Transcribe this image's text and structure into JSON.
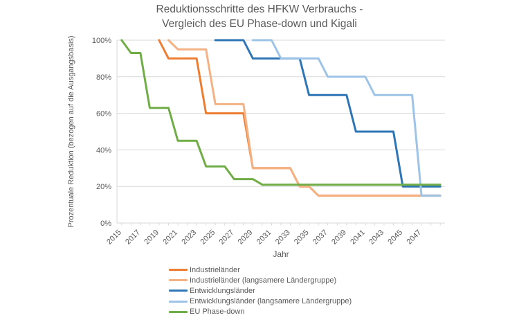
{
  "title": {
    "line1": "Reduktionsschritte des HFKW Verbrauchs -",
    "line2": "Vergleich des EU Phase-down und Kigali"
  },
  "axes": {
    "y": {
      "title": "Prozentuale Reduktion (bezogen auf die Ausgangsbasis)",
      "ticks": [
        "0%",
        "20%",
        "40%",
        "60%",
        "80%",
        "100%"
      ],
      "min": 0,
      "max": 100
    },
    "x": {
      "title": "Jahr",
      "tick_years": [
        2015,
        2017,
        2019,
        2021,
        2023,
        2025,
        2027,
        2029,
        2031,
        2033,
        2035,
        2037,
        2039,
        2041,
        2043,
        2045,
        2047
      ],
      "first_year": 2015,
      "last_year": 2049
    }
  },
  "chart_data": {
    "type": "line",
    "subtype": "step-yearly",
    "title": "Reduktionsschritte des HFKW Verbrauchs - Vergleich des EU Phase-down und Kigali",
    "xlabel": "Jahr",
    "ylabel": "Prozentuale Reduktion (bezogen auf die Ausgangsbasis)",
    "x_range": [
      2015,
      2049
    ],
    "ylim": [
      0,
      100
    ],
    "y_tick_step": 20,
    "grid": "horizontal",
    "legend_position": "bottom-left",
    "series": [
      {
        "name": "Industrieländer",
        "color": "#ED7D31",
        "points": [
          [
            2019,
            100
          ],
          [
            2020,
            90
          ],
          [
            2023,
            90
          ],
          [
            2024,
            60
          ],
          [
            2028,
            60
          ],
          [
            2029,
            30
          ],
          [
            2033,
            30
          ],
          [
            2034,
            20
          ],
          [
            2035,
            20
          ],
          [
            2036,
            15
          ],
          [
            2049,
            15
          ]
        ]
      },
      {
        "name": "Industrieländer (langsamere Ländergruppe)",
        "color": "#F4B183",
        "points": [
          [
            2020,
            100
          ],
          [
            2021,
            95
          ],
          [
            2024,
            95
          ],
          [
            2025,
            65
          ],
          [
            2028,
            65
          ],
          [
            2029,
            30
          ],
          [
            2033,
            30
          ],
          [
            2034,
            20
          ],
          [
            2035,
            20
          ],
          [
            2036,
            15
          ],
          [
            2049,
            15
          ]
        ]
      },
      {
        "name": "Entwicklungsländer",
        "color": "#2E75B6",
        "points": [
          [
            2025,
            100
          ],
          [
            2028,
            100
          ],
          [
            2029,
            90
          ],
          [
            2034,
            90
          ],
          [
            2035,
            70
          ],
          [
            2039,
            70
          ],
          [
            2040,
            50
          ],
          [
            2044,
            50
          ],
          [
            2045,
            20
          ],
          [
            2049,
            20
          ]
        ]
      },
      {
        "name": "Entwicklungsländer (langsamere Ländergruppe)",
        "color": "#9DC3E6",
        "points": [
          [
            2029,
            100
          ],
          [
            2031,
            100
          ],
          [
            2032,
            90
          ],
          [
            2036,
            90
          ],
          [
            2037,
            80
          ],
          [
            2041,
            80
          ],
          [
            2042,
            70
          ],
          [
            2046,
            70
          ],
          [
            2047,
            15
          ],
          [
            2049,
            15
          ]
        ]
      },
      {
        "name": "EU Phase-down",
        "color": "#70AD47",
        "points": [
          [
            2015,
            100
          ],
          [
            2016,
            93
          ],
          [
            2017,
            93
          ],
          [
            2018,
            63
          ],
          [
            2020,
            63
          ],
          [
            2021,
            45
          ],
          [
            2023,
            45
          ],
          [
            2024,
            31
          ],
          [
            2026,
            31
          ],
          [
            2027,
            24
          ],
          [
            2029,
            24
          ],
          [
            2030,
            21
          ],
          [
            2049,
            21
          ]
        ]
      }
    ]
  },
  "colors": {
    "grid": "#D9D9D9",
    "axis": "#D9D9D9",
    "text": "#595959"
  }
}
